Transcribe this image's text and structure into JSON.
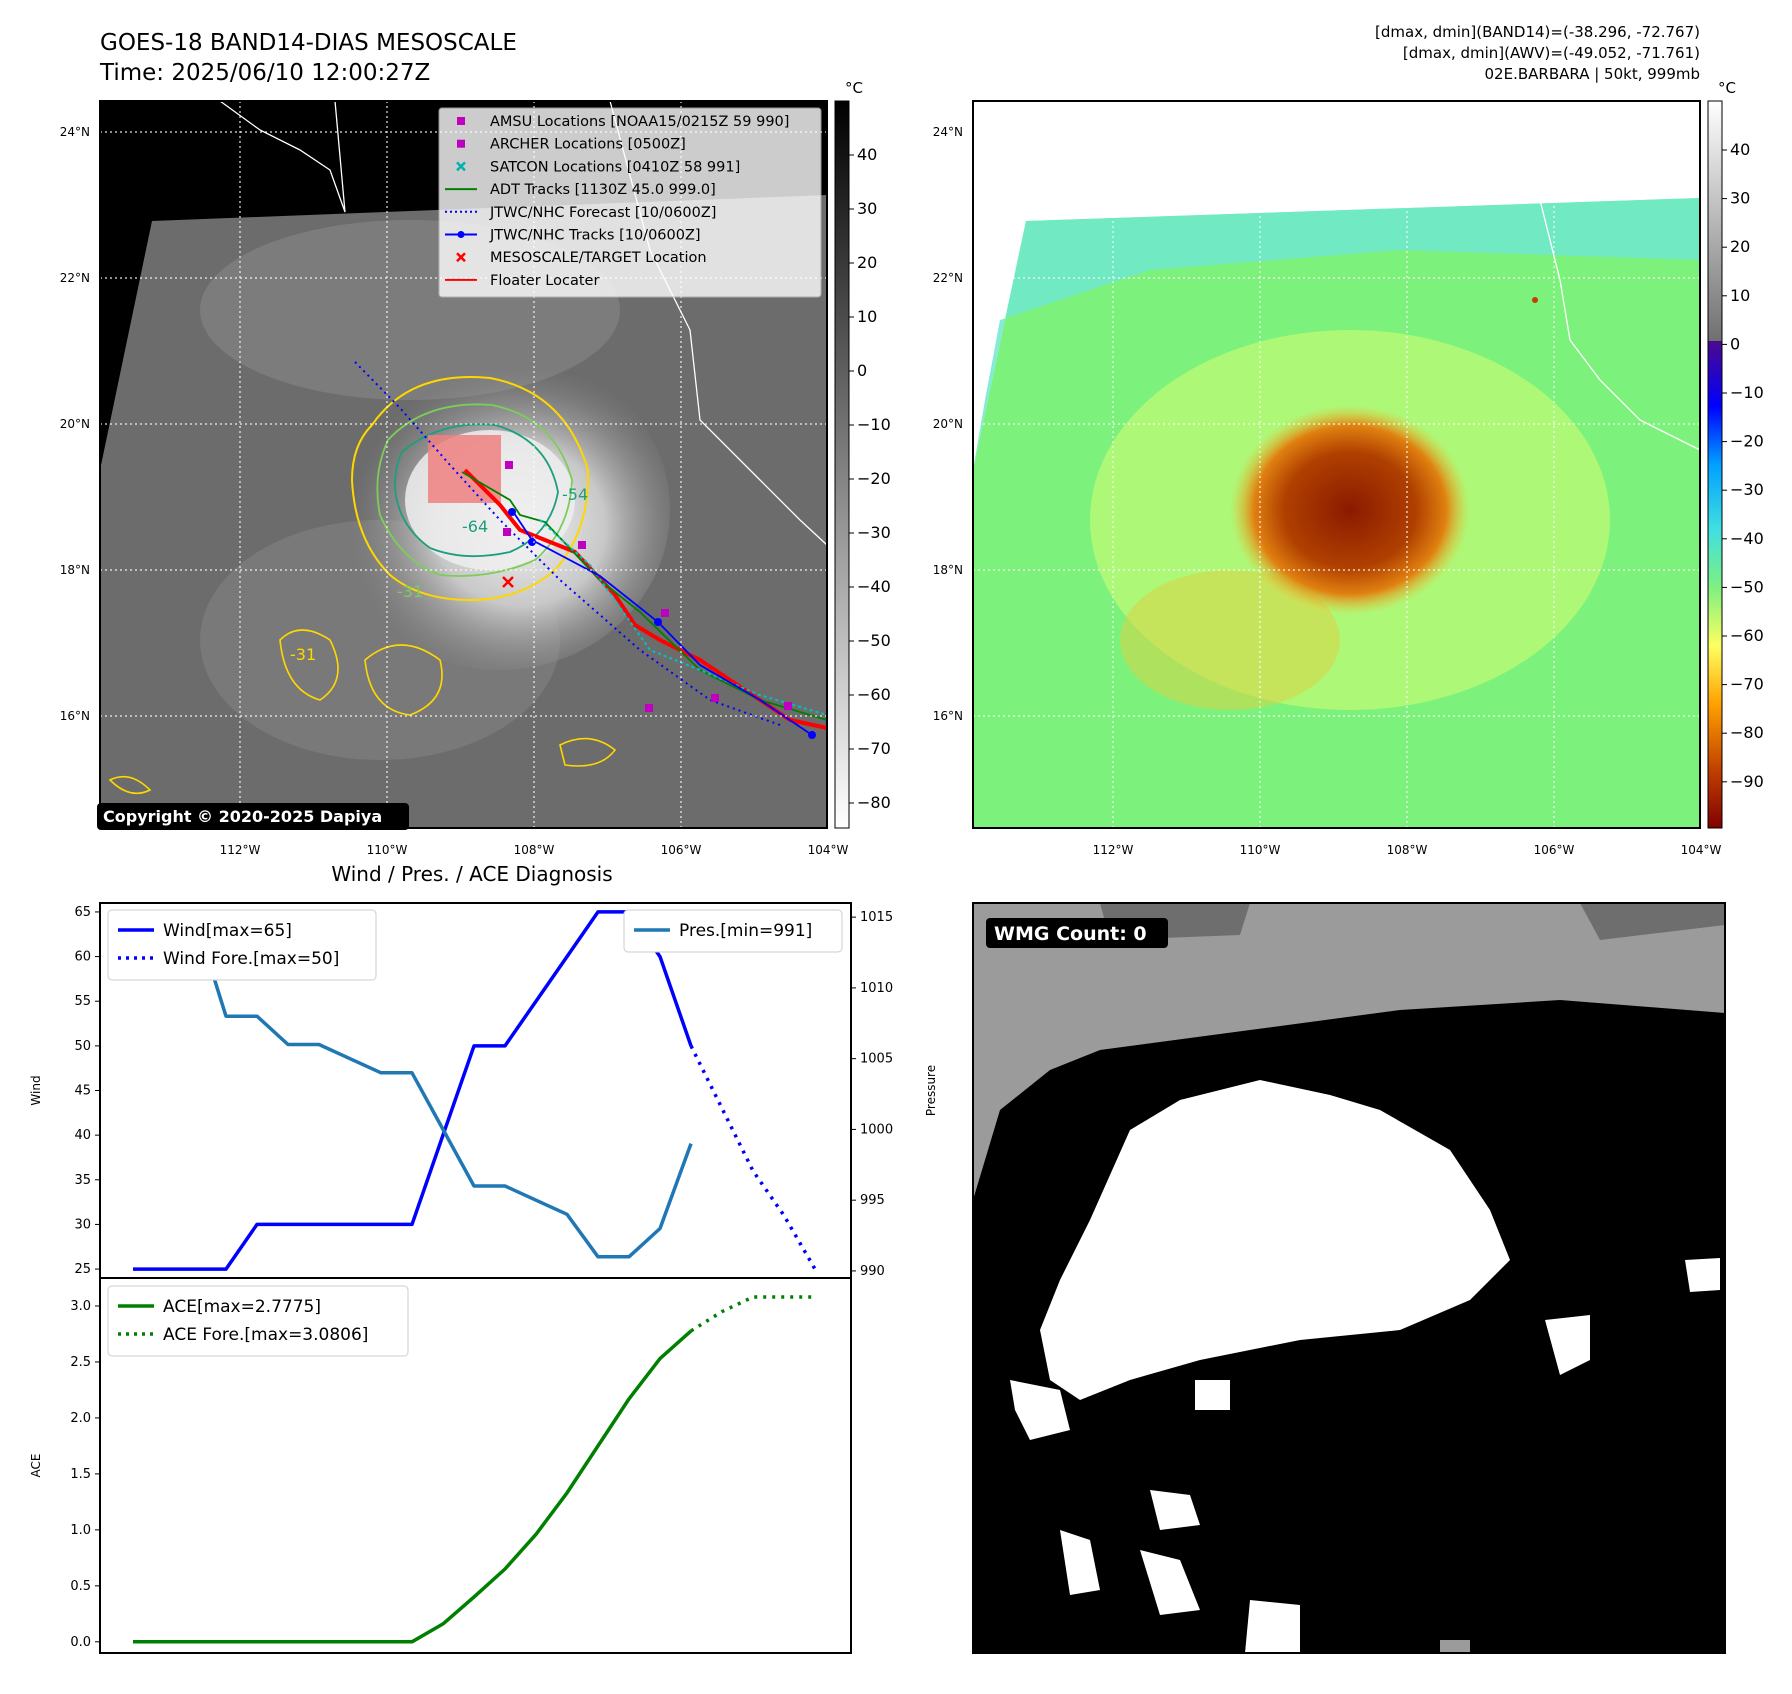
{
  "header": {
    "title": "GOES-18 BAND14-DIAS MESOSCALE",
    "time": "Time: 2025/06/10 12:00:27Z",
    "stats_band14": "[dmax, dmin](BAND14)=(-38.296, -72.767)",
    "stats_awv": "[dmax, dmin](AWV)=(-49.052, -71.761)",
    "storm": "02E.BARBARA | 50kt, 999mb"
  },
  "copyright": "Copyright © 2020-2025 Dapiya",
  "colorbar_unit": "°C",
  "colorbar_left_ticks": [
    "40",
    "30",
    "20",
    "10",
    "0",
    "−10",
    "−20",
    "−30",
    "−40",
    "−50",
    "−60",
    "−70",
    "−80"
  ],
  "colorbar_right_ticks": [
    "40",
    "30",
    "20",
    "10",
    "0",
    "−10",
    "−20",
    "−30",
    "−40",
    "−50",
    "−60",
    "−70",
    "−80",
    "−90"
  ],
  "map_axes": {
    "lon_labels": [
      "112°W",
      "110°W",
      "108°W",
      "106°W",
      "104°W"
    ],
    "lat_labels": [
      "24°N",
      "22°N",
      "20°N",
      "18°N",
      "16°N"
    ]
  },
  "contour_labels": [
    "-64",
    "-54",
    "-31",
    "-31"
  ],
  "legend": [
    {
      "label": "AMSU Locations [NOAA15/0215Z 59 990]",
      "marker": "square",
      "color": "#c000c0"
    },
    {
      "label": "ARCHER Locations [0500Z]",
      "marker": "square",
      "color": "#c000c0"
    },
    {
      "label": "SATCON Locations [0410Z 58 991]",
      "marker": "x",
      "color": "#00b0b0"
    },
    {
      "label": "ADT Tracks [1130Z 45.0 999.0]",
      "marker": "line",
      "color": "#008000"
    },
    {
      "label": "JTWC/NHC Forecast [10/0600Z]",
      "marker": "dotted",
      "color": "#0000ff"
    },
    {
      "label": "JTWC/NHC Tracks [10/0600Z]",
      "marker": "line-dot",
      "color": "#0000ff"
    },
    {
      "label": "MESOSCALE/TARGET Location",
      "marker": "x",
      "color": "#ff0000"
    },
    {
      "label": "Floater Locater",
      "marker": "line",
      "color": "#ff0000"
    }
  ],
  "wmg": {
    "label": "WMG Count: 0"
  },
  "chart_data": [
    {
      "type": "line",
      "title": "Wind / Pres. / ACE Diagnosis",
      "ylabel": "Wind",
      "y2label": "Pressure",
      "ylim": [
        24,
        66
      ],
      "y2lim": [
        989.5,
        1016
      ],
      "yticks": [
        25,
        30,
        35,
        40,
        45,
        50,
        55,
        60,
        65
      ],
      "y2ticks": [
        990,
        995,
        1000,
        1005,
        1010,
        1015
      ],
      "x": [
        0,
        1,
        2,
        3,
        4,
        5,
        6,
        7,
        8,
        9,
        10,
        11,
        12,
        13,
        14,
        15,
        16,
        17,
        18,
        19
      ],
      "series": [
        {
          "name": "Wind[max=65]",
          "axis": "left",
          "color": "#0000ff",
          "style": "solid",
          "x": [
            0,
            1,
            2,
            3,
            4,
            5,
            6,
            7,
            8,
            9,
            10,
            11,
            12,
            13,
            14,
            15,
            16,
            17,
            18
          ],
          "values": [
            25,
            25,
            25,
            25,
            30,
            30,
            30,
            30,
            30,
            30,
            40,
            50,
            50,
            55,
            60,
            65,
            65,
            60,
            50
          ]
        },
        {
          "name": "Wind Fore.[max=50]",
          "axis": "left",
          "color": "#0000ff",
          "style": "dotted",
          "x": [
            18,
            19,
            20,
            21,
            22
          ],
          "values": [
            50,
            43,
            36,
            31,
            25
          ]
        },
        {
          "name": "Pres.[min=991]",
          "axis": "right",
          "color": "#1f77b4",
          "style": "solid",
          "x": [
            0,
            1,
            2,
            3,
            4,
            5,
            6,
            7,
            8,
            9,
            10,
            11,
            12,
            13,
            14,
            15,
            16,
            17,
            18
          ],
          "values": [
            1015,
            1015,
            1015,
            1008,
            1008,
            1006,
            1006,
            1005,
            1004,
            1004,
            1000,
            996,
            996,
            995,
            994,
            991,
            991,
            993,
            999
          ]
        }
      ]
    },
    {
      "type": "line",
      "ylabel": "ACE",
      "ylim": [
        -0.1,
        3.25
      ],
      "yticks": [
        0.0,
        0.5,
        1.0,
        1.5,
        2.0,
        2.5,
        3.0
      ],
      "ytick_labels": [
        "0.0",
        "0.5",
        "1.0",
        "1.5",
        "2.0",
        "2.5",
        "3.0"
      ],
      "series": [
        {
          "name": "ACE[max=2.7775]",
          "color": "#008000",
          "style": "solid",
          "x": [
            0,
            1,
            2,
            3,
            4,
            5,
            6,
            7,
            8,
            9,
            10,
            11,
            12,
            13,
            14,
            15,
            16,
            17,
            18
          ],
          "values": [
            0,
            0,
            0,
            0,
            0,
            0,
            0,
            0,
            0,
            0,
            0.16,
            0.4,
            0.65,
            0.96,
            1.33,
            1.75,
            2.17,
            2.53,
            2.7775
          ]
        },
        {
          "name": "ACE Fore.[max=3.0806]",
          "color": "#008000",
          "style": "dotted",
          "x": [
            18,
            19,
            20,
            21,
            22
          ],
          "values": [
            2.7775,
            2.95,
            3.0806,
            3.0806,
            3.0806
          ]
        }
      ]
    }
  ]
}
